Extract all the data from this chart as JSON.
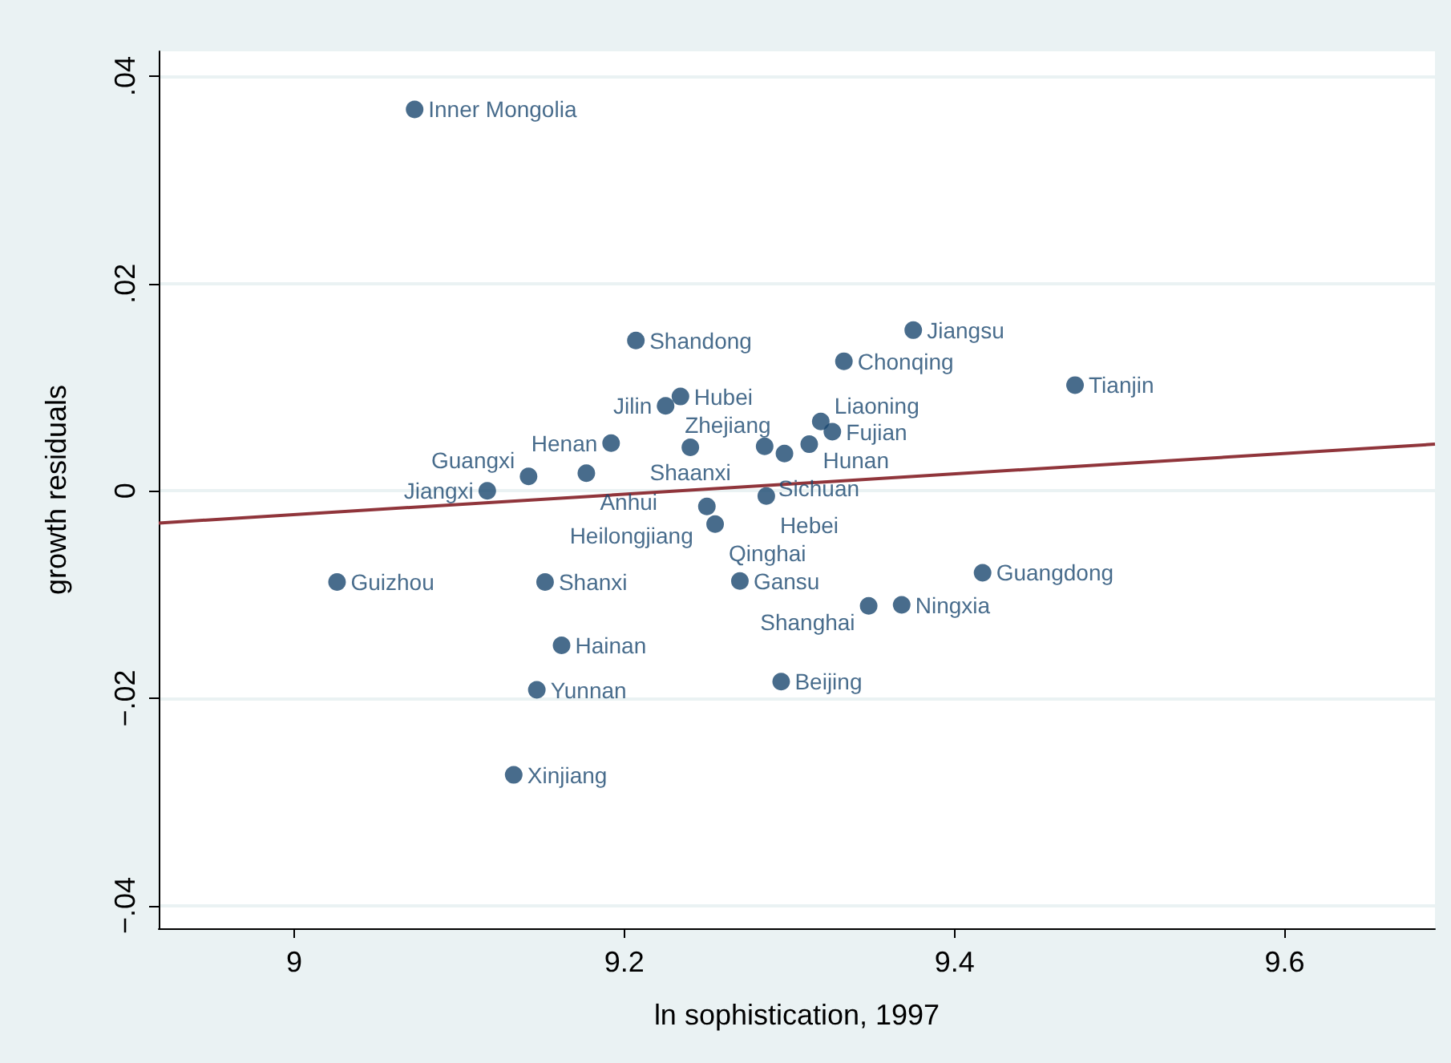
{
  "chart_data": {
    "type": "scatter",
    "xlabel": "ln sophistication, 1997",
    "ylabel": "growth residuals",
    "xlim": [
      8.918,
      9.691
    ],
    "ylim": [
      -0.0422,
      0.0424
    ],
    "xticks": [
      9,
      9.2,
      9.4,
      9.6
    ],
    "yticks": [
      {
        "value": -0.04,
        "label": "−.04"
      },
      {
        "value": -0.02,
        "label": "−.02"
      },
      {
        "value": 0,
        "label": "0"
      },
      {
        "value": 0.02,
        "label": ".02"
      },
      {
        "value": 0.04,
        "label": ".04"
      }
    ],
    "grid": "y",
    "series": [
      {
        "color": "#1a476f",
        "marker": "circle",
        "x": [
          9.073,
          9.207,
          9.375,
          9.333,
          9.473,
          9.234,
          9.225,
          9.319,
          9.326,
          9.192,
          9.24,
          9.285,
          9.312,
          9.297,
          9.142,
          9.177,
          9.117,
          9.286,
          9.25,
          9.255,
          9.026,
          9.152,
          9.27,
          9.417,
          9.348,
          9.368,
          9.162,
          9.147,
          9.295,
          9.133
        ],
        "values": [
          0.0368,
          0.0145,
          0.0155,
          0.0125,
          0.0102,
          0.0091,
          0.0082,
          0.0067,
          0.0057,
          0.0046,
          0.0042,
          0.0043,
          0.0045,
          0.0036,
          0.0014,
          0.0017,
          0.0,
          -0.0005,
          -0.0015,
          -0.0032,
          -0.0088,
          -0.0088,
          -0.0087,
          -0.0079,
          -0.0111,
          -0.011,
          -0.0149,
          -0.0192,
          -0.0184,
          -0.0274
        ],
        "value_labels": [
          "Inner Mongolia",
          "Shandong",
          "Jiangsu",
          "Chonqing",
          "Tianjin",
          "Hubei",
          "Jilin",
          "Liaoning",
          "Fujian",
          "Henan",
          "Shaanxi",
          "Sichuan",
          "Hunan",
          "Zhejiang",
          "Guangxi",
          "Anhui",
          "Jiangxi",
          "Hebei",
          "Heilongjiang",
          "Qinghai",
          "Guizhou",
          "Shanxi",
          "Gansu",
          "Guangdong",
          "Shanghai",
          "Ningxia",
          "Hainan",
          "Yunnan",
          "Beijing",
          "Xinjiang"
        ]
      },
      {
        "type": "line",
        "color": "#90353b",
        "x": [
          8.918,
          9.691
        ],
        "values": [
          -0.0031,
          0.0045
        ]
      }
    ]
  }
}
